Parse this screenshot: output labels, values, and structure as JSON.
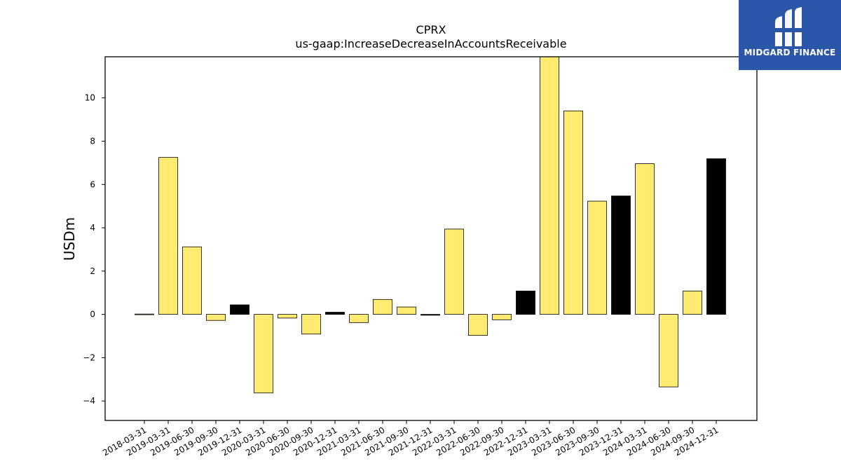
{
  "chart_data": {
    "type": "bar",
    "title": "CPRX",
    "subtitle": "us-gaap:IncreaseDecreaseInAccountsReceivable",
    "xlabel": "",
    "ylabel": "USDm",
    "ylim": [
      -4.9,
      11.9
    ],
    "yticks": [
      -4,
      -2,
      0,
      2,
      4,
      6,
      8,
      10
    ],
    "ytick_labels": [
      "−4",
      "−2",
      "0",
      "2",
      "4",
      "6",
      "8",
      "10"
    ],
    "grid": false,
    "legend": "none",
    "categories": [
      "2018-03-31",
      "2019-03-31",
      "2019-06-30",
      "2019-09-30",
      "2019-12-31",
      "2020-03-31",
      "2020-06-30",
      "2020-09-30",
      "2020-12-31",
      "2021-03-31",
      "2021-06-30",
      "2021-09-30",
      "2021-12-31",
      "2022-03-31",
      "2022-06-30",
      "2022-09-30",
      "2022-12-31",
      "2023-03-31",
      "2023-06-30",
      "2023-09-30",
      "2023-12-31",
      "2024-03-31",
      "2024-06-30",
      "2024-09-30",
      "2024-12-31"
    ],
    "values": [
      0.0,
      7.25,
      3.12,
      -0.28,
      0.44,
      -3.63,
      -0.17,
      -0.91,
      0.1,
      -0.38,
      0.69,
      0.34,
      -0.04,
      3.94,
      -0.97,
      -0.25,
      1.08,
      12.2,
      9.4,
      5.23,
      5.47,
      6.96,
      -3.35,
      1.08,
      7.19
    ],
    "is_annual": [
      false,
      false,
      false,
      false,
      true,
      false,
      false,
      false,
      true,
      false,
      false,
      false,
      true,
      false,
      false,
      false,
      true,
      false,
      false,
      false,
      true,
      false,
      false,
      false,
      true
    ],
    "colors": {
      "quarter": "#ffeb70",
      "annual": "#000000",
      "edge": "#000000"
    }
  },
  "branding": {
    "logo_text": "MIDGARD FINANCE",
    "logo_bg": "#2c56a8"
  }
}
